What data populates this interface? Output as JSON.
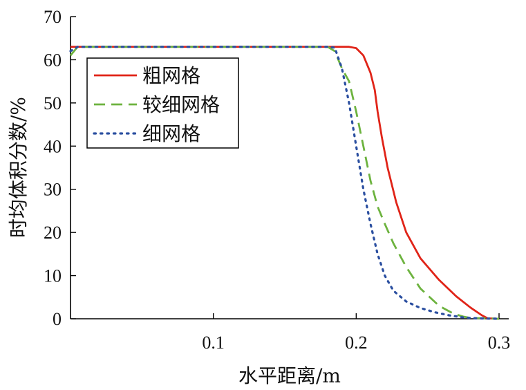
{
  "chart_data": {
    "type": "line",
    "xlabel": "水平距离/m",
    "ylabel": "时均体积分数/%",
    "xlim": [
      0,
      0.3
    ],
    "ylim": [
      0,
      70
    ],
    "xticks": [
      0.1,
      0.2,
      0.3
    ],
    "xtick_labels": [
      "0.1",
      "0.2",
      "0.3"
    ],
    "yticks": [
      0,
      10,
      20,
      30,
      40,
      50,
      60,
      70
    ],
    "ytick_labels": [
      "0",
      "10",
      "20",
      "30",
      "40",
      "50",
      "60",
      "70"
    ],
    "grid": false,
    "legend_position": "top-left",
    "series": [
      {
        "name": "粗网格",
        "color": "#e02418",
        "style": "solid",
        "x": [
          0.0,
          0.02,
          0.1,
          0.18,
          0.195,
          0.2,
          0.205,
          0.21,
          0.213,
          0.215,
          0.218,
          0.222,
          0.228,
          0.235,
          0.245,
          0.258,
          0.27,
          0.28,
          0.288,
          0.292,
          0.3
        ],
        "y": [
          63,
          63,
          63,
          63,
          63,
          62.7,
          61,
          57,
          53,
          48,
          42,
          35,
          27,
          20,
          14,
          9,
          5.2,
          2.6,
          0.8,
          0.1,
          0
        ]
      },
      {
        "name": "较细网格",
        "color": "#6db33f",
        "style": "dashed",
        "x": [
          0.0,
          0.005,
          0.01,
          0.1,
          0.18,
          0.185,
          0.19,
          0.195,
          0.2,
          0.205,
          0.21,
          0.215,
          0.22,
          0.226,
          0.235,
          0.245,
          0.258,
          0.268,
          0.275,
          0.28,
          0.3
        ],
        "y": [
          61,
          63,
          63,
          63,
          63,
          62,
          58,
          55,
          48,
          40,
          32,
          26,
          22,
          17.5,
          12,
          7,
          3,
          1.2,
          0.5,
          0.2,
          0
        ]
      },
      {
        "name": "细网格",
        "color": "#2b4fa0",
        "style": "dotted",
        "x": [
          0.0,
          0.005,
          0.01,
          0.1,
          0.18,
          0.185,
          0.19,
          0.195,
          0.2,
          0.205,
          0.21,
          0.215,
          0.22,
          0.226,
          0.235,
          0.245,
          0.255,
          0.265,
          0.275,
          0.285,
          0.3
        ],
        "y": [
          62,
          63,
          63,
          63,
          63,
          62.8,
          58,
          50,
          40,
          30,
          22,
          15,
          10,
          6.5,
          4,
          2.5,
          1.5,
          0.8,
          0.3,
          0.1,
          0
        ]
      }
    ]
  }
}
